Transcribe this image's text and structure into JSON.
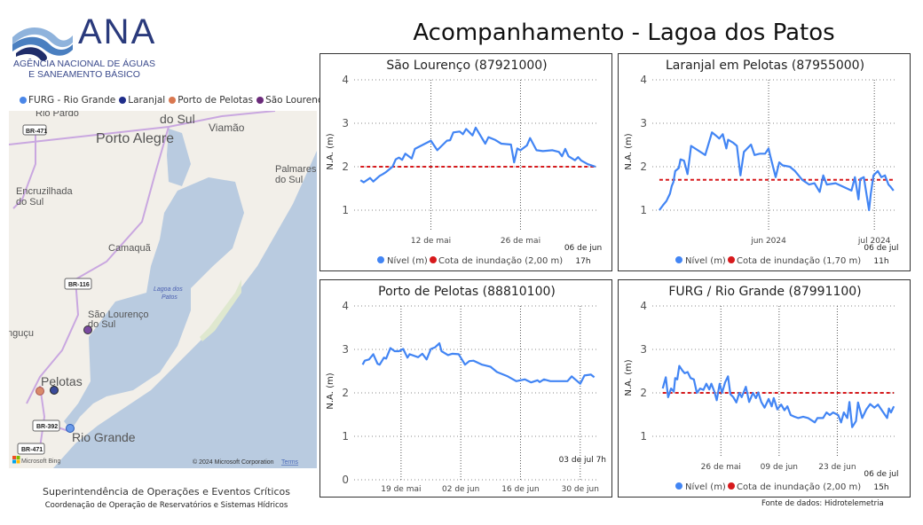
{
  "logo": {
    "name": "ANA",
    "subtitle_line1": "AGÊNCIA NACIONAL DE ÁGUAS",
    "subtitle_line2": "E SANEAMENTO BÁSICO"
  },
  "page_title": "Acompanhamento - Lagoa dos Patos",
  "map": {
    "legend": [
      {
        "label": "FURG - Rio Grande",
        "color": "#4a86e8"
      },
      {
        "label": "Laranjal",
        "color": "#1f2d8a"
      },
      {
        "label": "Porto de Pelotas",
        "color": "#d9774f"
      },
      {
        "label": "São Lourenço",
        "color": "#6a2a7a"
      }
    ],
    "places": [
      "Rio Pardo",
      "do Sul",
      "Viamão",
      "Porto Alegre",
      "Palmares",
      "do Sul",
      "Encruzilhada",
      "do Sul",
      "Camaquã",
      "Lagoa dos",
      "Patos",
      "São Lourenço",
      "do Sul",
      "nguçu",
      "Pelotas",
      "Rio Grande"
    ],
    "roads": [
      "BR-471",
      "BR-116",
      "BR-392",
      "BR-471"
    ],
    "provider": "Microsoft Bing",
    "copyright": "© 2024 Microsoft Corporation",
    "terms": "Terms"
  },
  "footer": {
    "line1": "Superintendência de Operações e Eventos Críticos",
    "line2": "Coordenação de Operação de Reservatórios e Sistemas Hídricos",
    "source": "Fonte de dados: Hidrotelemetria"
  },
  "chart_data": [
    {
      "type": "line",
      "title": "São Lourenço (87921000)",
      "ylabel": "N.A. (m)",
      "ylim": [
        0.5,
        4
      ],
      "yticks": [
        "1",
        "2",
        "3",
        "4"
      ],
      "xlim": [
        "2024-04-30",
        "2024-06-07"
      ],
      "xticks": [
        {
          "date": "2024-05-12",
          "label": "12 de mai"
        },
        {
          "date": "2024-05-26",
          "label": "26 de mai"
        }
      ],
      "last_reading": [
        "06 de jun",
        "17h"
      ],
      "grid": true,
      "legend": [
        "Nível (m)",
        "Cota de inundação (2,00 m)"
      ],
      "legend_position": "bottom",
      "colors": {
        "level": "#4285f4",
        "flood": "#d7191c"
      },
      "flood_level": 2.0,
      "series": [
        [
          "2024-05-01T00:00",
          1.69
        ],
        [
          "2024-05-01T12:00",
          1.64
        ],
        [
          "2024-05-02T12:00",
          1.74
        ],
        [
          "2024-05-03T00:00",
          1.66
        ],
        [
          "2024-05-04T00:00",
          1.79
        ],
        [
          "2024-05-04T12:00",
          1.83
        ],
        [
          "2024-05-05T00:00",
          1.88
        ],
        [
          "2024-05-06T00:00",
          2.0
        ],
        [
          "2024-05-06T12:00",
          2.17
        ],
        [
          "2024-05-07T00:00",
          2.21
        ],
        [
          "2024-05-07T12:00",
          2.16
        ],
        [
          "2024-05-08T00:00",
          2.3
        ],
        [
          "2024-05-09T00:00",
          2.19
        ],
        [
          "2024-05-09T12:00",
          2.41
        ],
        [
          "2024-05-12T00:00",
          2.6
        ],
        [
          "2024-05-13T00:00",
          2.38
        ],
        [
          "2024-05-14T12:00",
          2.6
        ],
        [
          "2024-05-15T00:00",
          2.61
        ],
        [
          "2024-05-15T12:00",
          2.79
        ],
        [
          "2024-05-16T12:00",
          2.81
        ],
        [
          "2024-05-17T00:00",
          2.75
        ],
        [
          "2024-05-17T12:00",
          2.87
        ],
        [
          "2024-05-18T12:00",
          2.72
        ],
        [
          "2024-05-19T00:00",
          2.9
        ],
        [
          "2024-05-20T12:00",
          2.53
        ],
        [
          "2024-05-21T00:00",
          2.68
        ],
        [
          "2024-05-22T00:00",
          2.62
        ],
        [
          "2024-05-23T00:00",
          2.53
        ],
        [
          "2024-05-24T12:00",
          2.51
        ],
        [
          "2024-05-25T00:00",
          2.1
        ],
        [
          "2024-05-25T12:00",
          2.42
        ],
        [
          "2024-05-26T00:00",
          2.38
        ],
        [
          "2024-05-27T00:00",
          2.49
        ],
        [
          "2024-05-27T12:00",
          2.66
        ],
        [
          "2024-05-28T12:00",
          2.38
        ],
        [
          "2024-05-29T12:00",
          2.36
        ],
        [
          "2024-05-31T00:00",
          2.38
        ],
        [
          "2024-06-01T00:00",
          2.34
        ],
        [
          "2024-06-01T12:00",
          2.24
        ],
        [
          "2024-06-02T00:00",
          2.41
        ],
        [
          "2024-06-02T12:00",
          2.24
        ],
        [
          "2024-06-03T12:00",
          2.15
        ],
        [
          "2024-06-04T00:00",
          2.22
        ],
        [
          "2024-06-04T12:00",
          2.14
        ],
        [
          "2024-06-05T12:00",
          2.06
        ],
        [
          "2024-06-06T17:00",
          2.0
        ]
      ]
    },
    {
      "type": "line",
      "title": "Laranjal em Pelotas (87955000)",
      "ylabel": "N.A. (m)",
      "ylim": [
        0.5,
        4
      ],
      "yticks": [
        "1",
        "2",
        "3",
        "4"
      ],
      "xlim": [
        "2024-04-29",
        "2024-07-07"
      ],
      "xticks": [
        {
          "date": "2024-06-01",
          "label": "jun 2024"
        },
        {
          "date": "2024-07-01",
          "label": "jul 2024"
        }
      ],
      "last_reading": [
        "06 de jul",
        "11h"
      ],
      "grid": true,
      "legend": [
        "Nível (m)",
        "Cota de inundação (1,70 m)"
      ],
      "legend_position": "bottom",
      "colors": {
        "level": "#4285f4",
        "flood": "#d7191c"
      },
      "flood_level": 1.7,
      "series": [
        [
          "2024-05-01T00:00",
          1.0
        ],
        [
          "2024-05-02T00:00",
          1.11
        ],
        [
          "2024-05-03T00:00",
          1.21
        ],
        [
          "2024-05-04T00:00",
          1.38
        ],
        [
          "2024-05-04T12:00",
          1.55
        ],
        [
          "2024-05-05T00:00",
          1.65
        ],
        [
          "2024-05-05T12:00",
          1.9
        ],
        [
          "2024-05-06T12:00",
          1.97
        ],
        [
          "2024-05-07T00:00",
          2.17
        ],
        [
          "2024-05-08T00:00",
          2.14
        ],
        [
          "2024-05-09T00:00",
          1.83
        ],
        [
          "2024-05-10T00:00",
          2.48
        ],
        [
          "2024-05-14T00:00",
          2.27
        ],
        [
          "2024-05-15T22:00",
          2.79
        ],
        [
          "2024-05-17T00:00",
          2.72
        ],
        [
          "2024-05-18T00:00",
          2.65
        ],
        [
          "2024-05-19T00:00",
          2.75
        ],
        [
          "2024-05-20T00:00",
          2.42
        ],
        [
          "2024-05-20T12:00",
          2.62
        ],
        [
          "2024-05-22T00:00",
          2.55
        ],
        [
          "2024-05-23T00:00",
          2.48
        ],
        [
          "2024-05-24T00:00",
          1.8
        ],
        [
          "2024-05-25T00:00",
          2.34
        ],
        [
          "2024-05-27T00:00",
          2.51
        ],
        [
          "2024-05-28T00:00",
          2.27
        ],
        [
          "2024-05-29T12:00",
          2.3
        ],
        [
          "2024-05-31T00:00",
          2.3
        ],
        [
          "2024-06-01T00:00",
          2.42
        ],
        [
          "2024-06-01T12:00",
          2.24
        ],
        [
          "2024-06-03T00:00",
          1.76
        ],
        [
          "2024-06-04T00:00",
          2.1
        ],
        [
          "2024-06-05T00:00",
          2.03
        ],
        [
          "2024-06-07T00:00",
          2.0
        ],
        [
          "2024-06-08T12:00",
          1.9
        ],
        [
          "2024-06-10T12:00",
          1.7
        ],
        [
          "2024-06-12T12:00",
          1.59
        ],
        [
          "2024-06-14T00:00",
          1.62
        ],
        [
          "2024-06-15T12:00",
          1.42
        ],
        [
          "2024-06-16T12:00",
          1.8
        ],
        [
          "2024-06-17T12:00",
          1.59
        ],
        [
          "2024-06-20T00:00",
          1.62
        ],
        [
          "2024-06-24T12:00",
          1.45
        ],
        [
          "2024-06-25T12:00",
          1.76
        ],
        [
          "2024-06-26T12:00",
          1.25
        ],
        [
          "2024-06-27T00:00",
          1.72
        ],
        [
          "2024-06-28T00:00",
          1.76
        ],
        [
          "2024-06-29T12:00",
          1.0
        ],
        [
          "2024-06-30T00:00",
          1.38
        ],
        [
          "2024-06-30T18:00",
          1.8
        ],
        [
          "2024-07-02T00:00",
          1.9
        ],
        [
          "2024-07-03T00:00",
          1.76
        ],
        [
          "2024-07-04T00:00",
          1.8
        ],
        [
          "2024-07-05T00:00",
          1.59
        ],
        [
          "2024-07-05T12:00",
          1.55
        ],
        [
          "2024-07-06T11:00",
          1.45
        ]
      ]
    },
    {
      "type": "line",
      "title": "Porto de Pelotas (88810100)",
      "ylabel": "N.A. (m)",
      "ylim": [
        0,
        4
      ],
      "yticks": [
        "0",
        "1",
        "2",
        "3",
        "4"
      ],
      "xlim": [
        "2024-05-08",
        "2024-07-04"
      ],
      "xticks": [
        {
          "date": "2024-05-19",
          "label": "19 de mai"
        },
        {
          "date": "2024-06-02",
          "label": "02 de jun"
        },
        {
          "date": "2024-06-16",
          "label": "16 de jun"
        },
        {
          "date": "2024-06-30",
          "label": "30 de jun"
        }
      ],
      "last_reading": [
        "03 de jul 7h"
      ],
      "grid": true,
      "colors": {
        "level": "#4285f4"
      },
      "series": [
        [
          "2024-05-10T00:00",
          2.65
        ],
        [
          "2024-05-10T12:00",
          2.74
        ],
        [
          "2024-05-11T12:00",
          2.77
        ],
        [
          "2024-05-12T12:00",
          2.89
        ],
        [
          "2024-05-13T12:00",
          2.67
        ],
        [
          "2024-05-14T00:00",
          2.65
        ],
        [
          "2024-05-15T00:00",
          2.81
        ],
        [
          "2024-05-15T12:00",
          2.79
        ],
        [
          "2024-05-16T12:00",
          3.03
        ],
        [
          "2024-05-17T12:00",
          2.96
        ],
        [
          "2024-05-18T12:00",
          2.96
        ],
        [
          "2024-05-19T12:00",
          3.01
        ],
        [
          "2024-05-20T12:00",
          2.81
        ],
        [
          "2024-05-21T00:00",
          2.89
        ],
        [
          "2024-05-23T00:00",
          2.82
        ],
        [
          "2024-05-24T00:00",
          2.9
        ],
        [
          "2024-05-25T00:00",
          2.77
        ],
        [
          "2024-05-26T00:00",
          3.01
        ],
        [
          "2024-05-27T00:00",
          3.05
        ],
        [
          "2024-05-28T00:00",
          3.14
        ],
        [
          "2024-05-28T12:00",
          2.96
        ],
        [
          "2024-05-30T00:00",
          2.87
        ],
        [
          "2024-05-31T00:00",
          2.9
        ],
        [
          "2024-06-01T12:00",
          2.89
        ],
        [
          "2024-06-02T00:00",
          2.81
        ],
        [
          "2024-06-03T00:00",
          2.65
        ],
        [
          "2024-06-04T00:00",
          2.73
        ],
        [
          "2024-06-05T00:00",
          2.74
        ],
        [
          "2024-06-07T00:00",
          2.65
        ],
        [
          "2024-06-09T00:00",
          2.6
        ],
        [
          "2024-06-10T12:00",
          2.48
        ],
        [
          "2024-06-13T00:00",
          2.38
        ],
        [
          "2024-06-15T00:00",
          2.27
        ],
        [
          "2024-06-17T00:00",
          2.31
        ],
        [
          "2024-06-18T12:00",
          2.24
        ],
        [
          "2024-06-20T00:00",
          2.29
        ],
        [
          "2024-06-20T12:00",
          2.25
        ],
        [
          "2024-06-21T12:00",
          2.31
        ],
        [
          "2024-06-23T00:00",
          2.27
        ],
        [
          "2024-06-27T00:00",
          2.27
        ],
        [
          "2024-06-28T00:00",
          2.38
        ],
        [
          "2024-06-30T00:00",
          2.21
        ],
        [
          "2024-07-01T00:00",
          2.4
        ],
        [
          "2024-07-02T12:00",
          2.42
        ],
        [
          "2024-07-03T07:00",
          2.36
        ]
      ]
    },
    {
      "type": "line",
      "title": "FURG / Rio Grande (87991100)",
      "ylabel": "N.A. (m)",
      "ylim": [
        0.5,
        4
      ],
      "yticks": [
        "1",
        "2",
        "3",
        "4"
      ],
      "xlim": [
        "2024-05-09T12:00",
        "2024-07-07"
      ],
      "xticks": [
        {
          "date": "2024-05-26",
          "label": "26 de mai"
        },
        {
          "date": "2024-06-09",
          "label": "09 de jun"
        },
        {
          "date": "2024-06-23",
          "label": "23 de jun"
        }
      ],
      "last_reading": [
        "06 de jul",
        "15h"
      ],
      "grid": true,
      "legend": [
        "Nível (m)",
        "Cota de inundação (2,00 m)"
      ],
      "legend_position": "bottom",
      "colors": {
        "level": "#4285f4",
        "flood": "#d7191c"
      },
      "flood_level": 2.0,
      "series": [
        [
          "2024-05-12T00:00",
          2.1
        ],
        [
          "2024-05-12T18:00",
          2.36
        ],
        [
          "2024-05-13T07:00",
          1.9
        ],
        [
          "2024-05-14T00:00",
          2.1
        ],
        [
          "2024-05-14T16:00",
          2.03
        ],
        [
          "2024-05-15T00:00",
          2.34
        ],
        [
          "2024-05-15T12:00",
          2.31
        ],
        [
          "2024-05-16T00:00",
          2.62
        ],
        [
          "2024-05-16T18:00",
          2.51
        ],
        [
          "2024-05-17T07:00",
          2.45
        ],
        [
          "2024-05-18T00:00",
          2.48
        ],
        [
          "2024-05-18T17:00",
          2.34
        ],
        [
          "2024-05-19T12:00",
          2.31
        ],
        [
          "2024-05-20T05:00",
          2.0
        ],
        [
          "2024-05-21T00:00",
          2.1
        ],
        [
          "2024-05-21T19:00",
          2.07
        ],
        [
          "2024-05-22T12:00",
          2.21
        ],
        [
          "2024-05-23T05:00",
          2.08
        ],
        [
          "2024-05-23T17:00",
          2.21
        ],
        [
          "2024-05-24T10:00",
          2.03
        ],
        [
          "2024-05-25T00:00",
          1.83
        ],
        [
          "2024-05-25T17:00",
          2.21
        ],
        [
          "2024-05-26T07:00",
          2.0
        ],
        [
          "2024-05-27T00:00",
          2.24
        ],
        [
          "2024-05-27T17:00",
          2.38
        ],
        [
          "2024-05-28T07:00",
          1.97
        ],
        [
          "2024-05-29T00:00",
          1.9
        ],
        [
          "2024-05-29T17:00",
          1.78
        ],
        [
          "2024-05-30T10:00",
          2.0
        ],
        [
          "2024-05-31T00:00",
          1.9
        ],
        [
          "2024-06-01T00:00",
          2.14
        ],
        [
          "2024-06-01T19:00",
          1.79
        ],
        [
          "2024-06-02T17:00",
          2.0
        ],
        [
          "2024-06-03T10:00",
          1.88
        ],
        [
          "2024-06-04T00:00",
          2.01
        ],
        [
          "2024-06-04T17:00",
          1.79
        ],
        [
          "2024-06-05T12:00",
          1.66
        ],
        [
          "2024-06-06T12:00",
          1.86
        ],
        [
          "2024-06-07T05:00",
          1.69
        ],
        [
          "2024-06-07T17:00",
          1.88
        ],
        [
          "2024-06-08T14:00",
          1.62
        ],
        [
          "2024-06-09T12:00",
          1.73
        ],
        [
          "2024-06-10T07:00",
          1.6
        ],
        [
          "2024-06-11T00:00",
          1.69
        ],
        [
          "2024-06-11T19:00",
          1.49
        ],
        [
          "2024-06-12T17:00",
          1.45
        ],
        [
          "2024-06-13T14:00",
          1.42
        ],
        [
          "2024-06-14T19:00",
          1.45
        ],
        [
          "2024-06-16T00:00",
          1.42
        ],
        [
          "2024-06-17T14:00",
          1.32
        ],
        [
          "2024-06-18T05:00",
          1.42
        ],
        [
          "2024-06-19T14:00",
          1.42
        ],
        [
          "2024-06-20T10:00",
          1.55
        ],
        [
          "2024-06-21T05:00",
          1.49
        ],
        [
          "2024-06-22T00:00",
          1.55
        ],
        [
          "2024-06-23T05:00",
          1.49
        ],
        [
          "2024-06-23T22:00",
          1.32
        ],
        [
          "2024-06-24T14:00",
          1.55
        ],
        [
          "2024-06-25T10:00",
          1.42
        ],
        [
          "2024-06-25T22:00",
          1.79
        ],
        [
          "2024-06-26T14:00",
          1.21
        ],
        [
          "2024-06-27T12:00",
          1.35
        ],
        [
          "2024-06-28T00:00",
          1.78
        ],
        [
          "2024-06-29T00:00",
          1.42
        ],
        [
          "2024-06-30T00:00",
          1.62
        ],
        [
          "2024-06-30T22:00",
          1.74
        ],
        [
          "2024-07-01T22:00",
          1.66
        ],
        [
          "2024-07-02T19:00",
          1.73
        ],
        [
          "2024-07-03T17:00",
          1.6
        ],
        [
          "2024-07-05T00:00",
          1.42
        ],
        [
          "2024-07-05T10:00",
          1.64
        ],
        [
          "2024-07-05T22:00",
          1.55
        ],
        [
          "2024-07-06T15:00",
          1.69
        ]
      ]
    }
  ]
}
